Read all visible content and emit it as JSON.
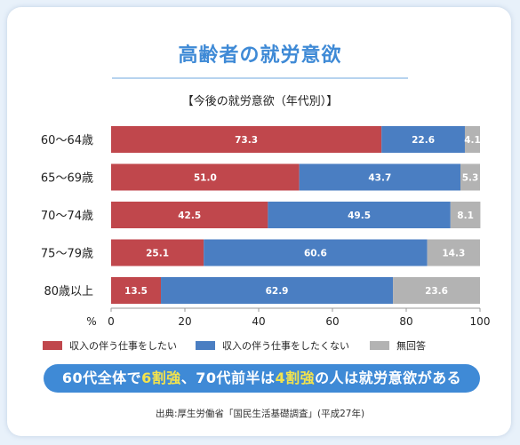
{
  "title": "高齢者の就労意欲",
  "subtitle": "【今後の就労意欲（年代別）】",
  "colors": {
    "series1": "#c0474c",
    "series2": "#4a7ec2",
    "series3": "#b3b3b3",
    "accent": "#3f8ad6",
    "highlight": "#f3e34c"
  },
  "chart_data": {
    "type": "bar",
    "orientation": "horizontal",
    "stacked": true,
    "categories": [
      "60〜64歳",
      "65〜69歳",
      "70〜74歳",
      "75〜79歳",
      "80歳以上"
    ],
    "series": [
      {
        "name": "収入の伴う仕事をしたい",
        "values": [
          73.3,
          51.0,
          42.5,
          25.1,
          13.5
        ],
        "labels": [
          "73.3",
          "51.0",
          "42.5",
          "25.1",
          "13.5"
        ]
      },
      {
        "name": "収入の伴う仕事をしたくない",
        "values": [
          22.6,
          43.7,
          49.5,
          60.6,
          62.9
        ],
        "labels": [
          "22.6",
          "43.7",
          "49.5",
          "60.6",
          "62.9"
        ]
      },
      {
        "name": "無回答",
        "values": [
          4.1,
          5.3,
          8.1,
          14.3,
          23.6
        ],
        "labels": [
          "4.1",
          "5.3",
          "8.1",
          "14.3",
          "23.6"
        ]
      }
    ],
    "xunit": "%",
    "xlim": [
      0,
      100
    ],
    "xticks": [
      "0",
      "20",
      "40",
      "60",
      "80",
      "100"
    ],
    "grid": false,
    "legend": "bottom"
  },
  "banner": {
    "part1": "60代全体で",
    "hl1": "6割強",
    "part2": "、70代前半は",
    "hl2": "4割強",
    "part3": "の人は就労意欲がある"
  },
  "source": "出典:厚生労働省「国民生活基礎調査」(平成27年)"
}
